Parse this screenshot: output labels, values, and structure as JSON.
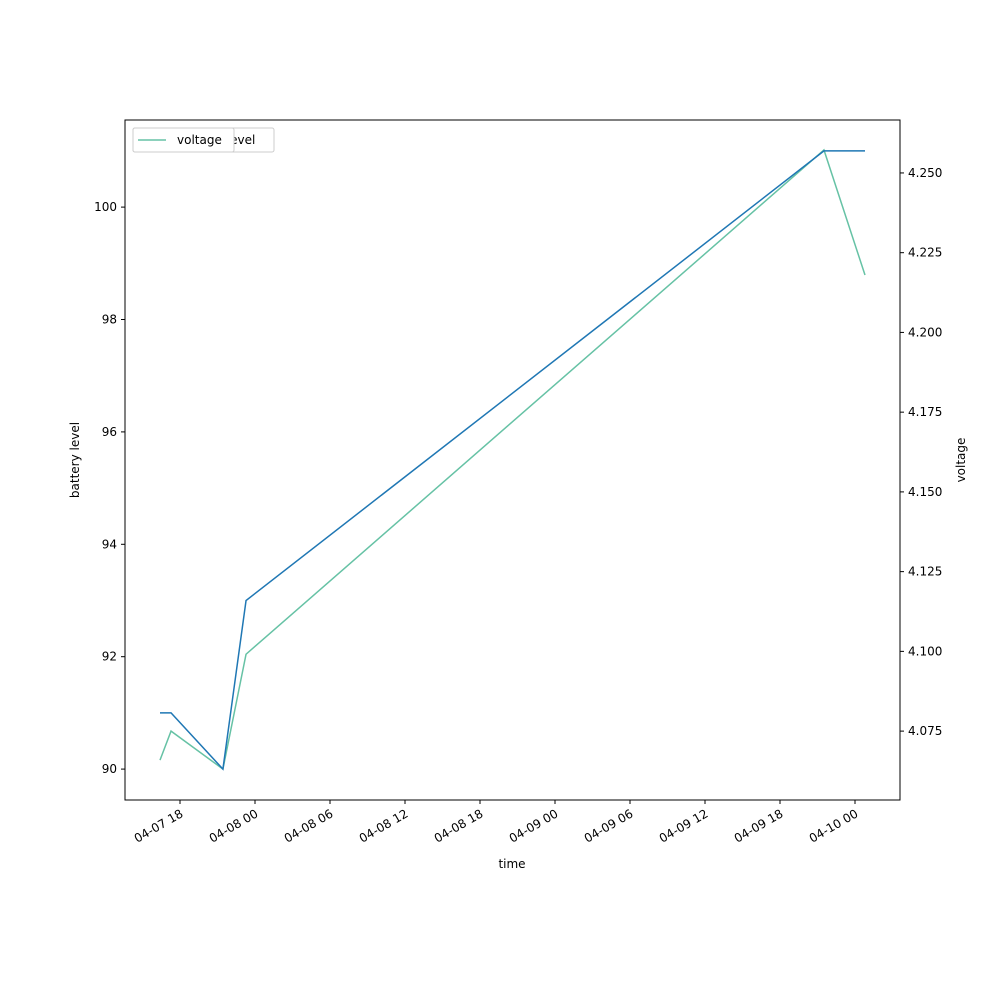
{
  "chart_data": {
    "type": "line",
    "x_label": "time",
    "y_label": "battery level",
    "y2_label": "voltage",
    "x": [
      "04-07 16:24",
      "04-07 17:17",
      "04-07 21:26",
      "04-07 23:17",
      "04-09 21:31",
      "04-10 00:48"
    ],
    "xlim": [
      "04-07 13:36",
      "04-10 03:36"
    ],
    "xticks": [
      "04-07 18",
      "04-08 00",
      "04-08 06",
      "04-08 12",
      "04-08 18",
      "04-09 00",
      "04-09 06",
      "04-09 12",
      "04-09 18",
      "04-10 00"
    ],
    "ylim": [
      89.45,
      101.55
    ],
    "yticks": [
      90,
      92,
      94,
      96,
      98,
      100
    ],
    "y2lim": [
      4.0534,
      4.2666
    ],
    "y2ticks": [
      4.075,
      {
        "value": 4.1,
        "label": "4.100"
      },
      4.125,
      {
        "value": 4.15,
        "label": "4.150"
      },
      4.175,
      {
        "value": 4.2,
        "label": "4.200"
      },
      4.225,
      {
        "value": 4.25,
        "label": "4.250"
      }
    ],
    "series": [
      {
        "name": "battery_level",
        "color": "#1f77b4",
        "values": [
          91,
          91,
          90,
          93,
          101,
          101
        ]
      },
      {
        "name": "voltage",
        "color": "#66c2a5",
        "axis": "y2",
        "values": [
          4.0659,
          4.075,
          4.0631,
          4.0991,
          4.2572,
          4.218
        ]
      }
    ]
  }
}
